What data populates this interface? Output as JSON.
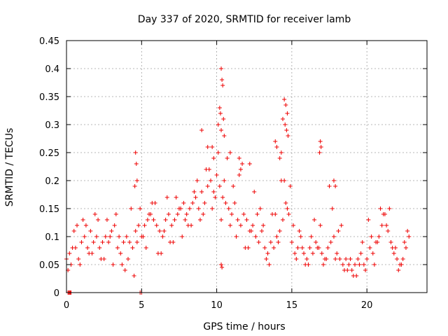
{
  "chart_data": {
    "type": "scatter",
    "title": "Day 337 of 2020, SRMTID for receiver lamb",
    "xlabel": "GPS time / hours",
    "ylabel": "SRMTID / TECUs",
    "xlim": [
      0,
      24
    ],
    "ylim": [
      0,
      0.45
    ],
    "xticks": [
      0,
      5,
      10,
      15,
      20
    ],
    "xtick_labels": [
      "0",
      "5",
      "10",
      "15",
      "20"
    ],
    "yticks": [
      0,
      0.05,
      0.1,
      0.15,
      0.2,
      0.25,
      0.3,
      0.35,
      0.4,
      0.45
    ],
    "ytick_labels": [
      "0",
      "0.05",
      "0.1",
      "0.15",
      "0.2",
      "0.25",
      "0.3",
      "0.35",
      "0.4",
      "0.45"
    ],
    "grid": true,
    "marker": "+",
    "color": "#ee0000",
    "series": [
      {
        "name": "SRMTID",
        "x": [
          0.0,
          0.2,
          0.4,
          0.6,
          0.8,
          1.0,
          1.2,
          1.4,
          1.6,
          1.8,
          2.0,
          2.2,
          2.4,
          2.6,
          2.8,
          3.0,
          3.2,
          3.4,
          3.6,
          3.8,
          4.0,
          4.2,
          4.4,
          4.6,
          4.8,
          5.0,
          5.2,
          5.4,
          5.6,
          5.8,
          6.0,
          6.2,
          6.4,
          6.6,
          6.8,
          7.0,
          7.2,
          7.4,
          7.6,
          7.8,
          8.0,
          8.2,
          8.4,
          8.6,
          8.8,
          9.0,
          9.2,
          9.4,
          9.6,
          9.8,
          10.0,
          10.2,
          10.4,
          10.6,
          10.8,
          11.0,
          11.2,
          11.4,
          11.6,
          11.8,
          12.0,
          12.2,
          12.4,
          12.6,
          12.8,
          13.0,
          13.2,
          13.4,
          13.6,
          13.8,
          14.0,
          14.2,
          14.4,
          14.6,
          14.8,
          15.0,
          15.2,
          15.4,
          15.6,
          15.8,
          16.0,
          16.2,
          16.4,
          16.6,
          16.8,
          17.0,
          17.2,
          17.4,
          17.6,
          17.8,
          18.0,
          18.2,
          18.4,
          18.6,
          18.8,
          19.0,
          19.2,
          19.4,
          19.6,
          19.8,
          20.0,
          20.2,
          20.4,
          20.6,
          20.8,
          21.0,
          21.2,
          21.4,
          21.6,
          21.8,
          22.0,
          22.2,
          22.4,
          22.6,
          22.8,
          0.1,
          0.3,
          0.5,
          0.9,
          1.3,
          1.7,
          2.1,
          2.5,
          2.9,
          3.3,
          3.7,
          4.1,
          4.5,
          4.9,
          5.3,
          5.7,
          6.1,
          6.5,
          6.9,
          7.3,
          7.7,
          8.1,
          8.5,
          8.9,
          9.3,
          9.7,
          10.1,
          10.5,
          10.9,
          11.3,
          11.7,
          12.1,
          12.5,
          12.9,
          13.3,
          13.7,
          14.1,
          14.5,
          14.9,
          15.3,
          15.7,
          16.1,
          16.5,
          16.9,
          17.3,
          17.7,
          18.1,
          18.5,
          18.9,
          19.3,
          19.7,
          20.1,
          20.5,
          20.9,
          21.3,
          21.7,
          22.1,
          22.5,
          0.7,
          1.1,
          1.5,
          1.9,
          2.3,
          2.7,
          3.1,
          3.5,
          3.9,
          4.3,
          4.7,
          5.1,
          5.5,
          5.9,
          6.3,
          6.7,
          7.1,
          7.5,
          7.9,
          8.3,
          8.7,
          9.1,
          9.5,
          9.9,
          10.3,
          10.7,
          11.1,
          11.5,
          11.9,
          12.3,
          12.7,
          13.1,
          13.5,
          13.9,
          14.3,
          14.7,
          15.1,
          15.5,
          15.9,
          16.3,
          16.7,
          17.1,
          17.5,
          17.9,
          18.3,
          18.7,
          19.1,
          19.5,
          19.9,
          20.3,
          20.7,
          21.1,
          21.5,
          21.9,
          22.3,
          22.7,
          10.3,
          10.35,
          10.4,
          10.25,
          10.3,
          14.5,
          14.6,
          14.7,
          14.65,
          14.4,
          14.55,
          14.75,
          9.0,
          9.4,
          9.8,
          10.1,
          10.5,
          10.9,
          11.6,
          12.2,
          16.9,
          16.95,
          16.85,
          17.8,
          17.9,
          4.6,
          4.65,
          4.7,
          4.55,
          13.9,
          14.0,
          14.2,
          14.3,
          10.2,
          10.45,
          0.1,
          0.15,
          0.2,
          0.25,
          0.3,
          4.9,
          5.0,
          10.3,
          10.35,
          9.7,
          11.5
        ],
        "y": [
          0.06,
          0.07,
          0.08,
          0.08,
          0.06,
          0.09,
          0.1,
          0.08,
          0.11,
          0.09,
          0.1,
          0.08,
          0.09,
          0.1,
          0.09,
          0.11,
          0.12,
          0.08,
          0.07,
          0.09,
          0.1,
          0.09,
          0.08,
          0.11,
          0.12,
          0.1,
          0.12,
          0.13,
          0.14,
          0.13,
          0.12,
          0.11,
          0.1,
          0.13,
          0.14,
          0.12,
          0.13,
          0.14,
          0.15,
          0.16,
          0.14,
          0.15,
          0.16,
          0.17,
          0.15,
          0.18,
          0.16,
          0.19,
          0.2,
          0.18,
          0.21,
          0.19,
          0.17,
          0.16,
          0.15,
          0.14,
          0.16,
          0.13,
          0.12,
          0.14,
          0.13,
          0.11,
          0.12,
          0.1,
          0.09,
          0.11,
          0.08,
          0.07,
          0.09,
          0.08,
          0.1,
          0.11,
          0.13,
          0.16,
          0.14,
          0.09,
          0.07,
          0.08,
          0.1,
          0.07,
          0.06,
          0.08,
          0.07,
          0.09,
          0.08,
          0.07,
          0.06,
          0.08,
          0.09,
          0.1,
          0.07,
          0.06,
          0.05,
          0.06,
          0.05,
          0.04,
          0.05,
          0.06,
          0.07,
          0.05,
          0.06,
          0.08,
          0.07,
          0.09,
          0.1,
          0.12,
          0.14,
          0.11,
          0.09,
          0.07,
          0.06,
          0.05,
          0.06,
          0.08,
          0.1,
          0.04,
          0.05,
          0.11,
          0.05,
          0.12,
          0.07,
          0.13,
          0.06,
          0.1,
          0.14,
          0.05,
          0.06,
          0.03,
          0.15,
          0.08,
          0.16,
          0.07,
          0.11,
          0.09,
          0.17,
          0.1,
          0.12,
          0.18,
          0.13,
          0.22,
          0.15,
          0.25,
          0.2,
          0.12,
          0.1,
          0.23,
          0.08,
          0.18,
          0.15,
          0.06,
          0.14,
          0.09,
          0.2,
          0.19,
          0.06,
          0.08,
          0.05,
          0.13,
          0.12,
          0.06,
          0.15,
          0.11,
          0.04,
          0.06,
          0.03,
          0.09,
          0.13,
          0.05,
          0.15,
          0.12,
          0.08,
          0.04,
          0.09,
          0.12,
          0.13,
          0.07,
          0.14,
          0.06,
          0.13,
          0.05,
          0.1,
          0.04,
          0.15,
          0.09,
          0.1,
          0.14,
          0.16,
          0.07,
          0.17,
          0.09,
          0.15,
          0.13,
          0.12,
          0.2,
          0.14,
          0.22,
          0.17,
          0.13,
          0.24,
          0.19,
          0.21,
          0.08,
          0.11,
          0.14,
          0.12,
          0.05,
          0.14,
          0.2,
          0.15,
          0.12,
          0.11,
          0.05,
          0.1,
          0.08,
          0.05,
          0.19,
          0.06,
          0.12,
          0.04,
          0.03,
          0.05,
          0.04,
          0.1,
          0.09,
          0.14,
          0.15,
          0.08,
          0.05,
          0.11,
          0.4,
          0.38,
          0.37,
          0.32,
          0.29,
          0.345,
          0.335,
          0.32,
          0.29,
          0.31,
          0.3,
          0.28,
          0.29,
          0.26,
          0.24,
          0.3,
          0.28,
          0.25,
          0.22,
          0.23,
          0.27,
          0.26,
          0.25,
          0.2,
          0.19,
          0.25,
          0.23,
          0.2,
          0.19,
          0.27,
          0.26,
          0.24,
          0.25,
          0.33,
          0.31,
          0.0,
          0.0,
          0.0,
          0.0,
          0.0,
          0.0,
          0.0,
          0.05,
          0.045,
          0.26,
          0.24
        ]
      }
    ]
  }
}
